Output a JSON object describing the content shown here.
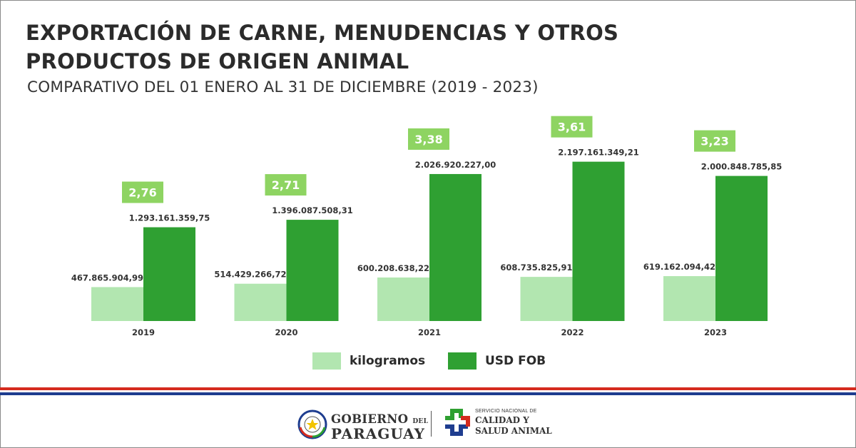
{
  "title_line1": "Exportación de carne, menudencias y otros",
  "title_line2": "productos de origen animal",
  "subtitle": "COMPARATIVO DEL 01 ENERO AL 31 DE DICIEMBRE (2019 - 2023)",
  "colors": {
    "kilogramos": "#b2e6b0",
    "usd_fob": "#2fa032",
    "price_badge": "#8ed462",
    "flag_red": "#d52b1e",
    "flag_blue": "#1e3d8f"
  },
  "chart_data": {
    "type": "bar",
    "categories": [
      "2019",
      "2020",
      "2021",
      "2022",
      "2023"
    ],
    "series": [
      {
        "name": "kilogramos",
        "values": [
          467865904.99,
          514429266.72,
          600208638.22,
          608735825.91,
          619162094.42
        ],
        "labels": [
          "467.865.904,99",
          "514.429.266,72",
          "600.208.638,22",
          "608.735.825,91",
          "619.162.094,42"
        ]
      },
      {
        "name": "USD FOB",
        "values": [
          1293161359.75,
          1396087508.31,
          2026920227.0,
          2197161349.21,
          2000848785.85
        ],
        "labels": [
          "1.293.161.359,75",
          "1.396.087.508,31",
          "2.026.920.227,00",
          "2.197.161.349,21",
          "2.000.848.785,85"
        ]
      }
    ],
    "price_per_kg": {
      "values": [
        2.76,
        2.71,
        3.38,
        3.61,
        3.23
      ],
      "labels": [
        "2,76",
        "2,71",
        "3,38",
        "3,61",
        "3,23"
      ]
    },
    "ylim": [
      0,
      2420000000
    ],
    "grid": false,
    "legend": "bottom-center"
  },
  "legend": {
    "items": [
      {
        "label": "kilogramos"
      },
      {
        "label": "USD FOB"
      }
    ]
  },
  "footer": {
    "gov_line1": "GOBIERNO",
    "gov_del": "DEL",
    "gov_line2": "PARAGUAY",
    "senacsa_small": "SERVICIO NACIONAL DE",
    "senacsa_line1": "CALIDAD Y",
    "senacsa_line2": "SALUD ANIMAL"
  }
}
